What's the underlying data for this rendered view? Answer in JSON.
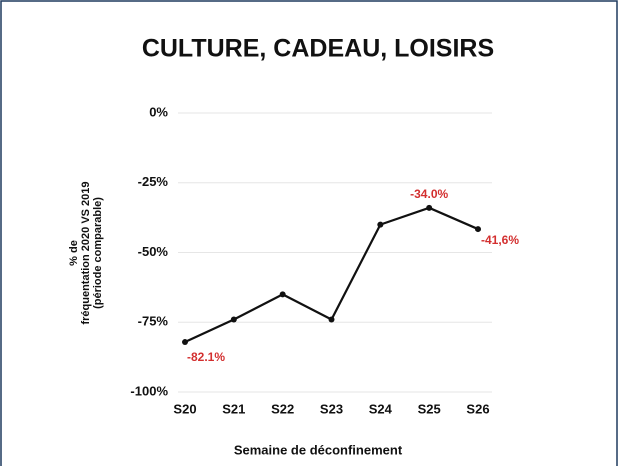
{
  "chart_data": {
    "type": "line",
    "title": "CULTURE, CADEAU, LOISIRS",
    "ylabel": [
      "% de",
      "fréquentation 2020 VS 2019",
      "(période comparable)"
    ],
    "xlabel": "Semaine de déconfinement",
    "categories": [
      "S20",
      "S21",
      "S22",
      "S23",
      "S24",
      "S25",
      "S26"
    ],
    "series": [
      {
        "name": "CULTURE, CADEAU, LOISIRS",
        "color": "#111111",
        "values": [
          -82.1,
          -74,
          -65,
          -74,
          -40,
          -34.0,
          -41.6
        ],
        "value_labels": [
          "-82.1%",
          null,
          null,
          null,
          null,
          "-34.0%",
          "-41,6%"
        ],
        "label_color": "#d32f2f"
      }
    ],
    "ylim": [
      -100,
      0
    ],
    "yticks": [
      {
        "value": 0,
        "label": "0%"
      },
      {
        "value": -25,
        "label": "-25%"
      },
      {
        "value": -50,
        "label": "-50%"
      },
      {
        "value": -75,
        "label": "-75%"
      },
      {
        "value": -100,
        "label": "-100%"
      }
    ],
    "grid": true
  }
}
